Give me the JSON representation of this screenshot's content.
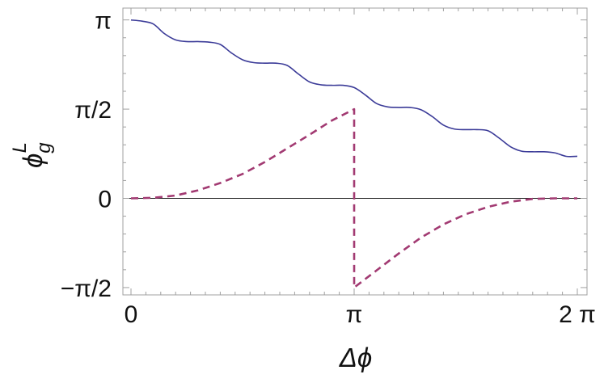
{
  "chart_data": {
    "type": "line",
    "title": "",
    "xlabel": "Δϕ",
    "ylabel": "ϕ",
    "ylabel_sub": "g",
    "ylabel_sup": "L",
    "xlim": [
      0,
      6.283185307
    ],
    "ylim": [
      -1.7,
      3.35
    ],
    "x_ticks": [
      {
        "value": 0,
        "label": "0"
      },
      {
        "value": 3.141592654,
        "label": "π"
      },
      {
        "value": 6.283185307,
        "label": "2 π"
      }
    ],
    "y_ticks": [
      {
        "value": 3.141592654,
        "label": "π"
      },
      {
        "value": 1.570796327,
        "label": "π/2"
      },
      {
        "value": 0,
        "label": "0"
      },
      {
        "value": -1.570796327,
        "label": "−π/2"
      }
    ],
    "zero_line": true,
    "grid": false,
    "series": [
      {
        "style": "solid",
        "color": "#3b3b98",
        "x": [
          0,
          0.157,
          0.314,
          0.471,
          0.628,
          0.785,
          0.942,
          1.1,
          1.257,
          1.414,
          1.571,
          1.728,
          1.885,
          2.042,
          2.199,
          2.356,
          2.513,
          2.67,
          2.827,
          2.985,
          3.142,
          3.299,
          3.456,
          3.613,
          3.77,
          3.927,
          4.084,
          4.241,
          4.398,
          4.555,
          4.712,
          4.869,
          5.027,
          5.184,
          5.341,
          5.498,
          5.655,
          5.812,
          5.969,
          6.126,
          6.283
        ],
        "y": [
          3.14,
          3.12,
          3.07,
          2.9,
          2.79,
          2.76,
          2.76,
          2.75,
          2.71,
          2.56,
          2.44,
          2.39,
          2.38,
          2.38,
          2.34,
          2.19,
          2.05,
          2.0,
          1.99,
          1.99,
          1.95,
          1.82,
          1.67,
          1.61,
          1.6,
          1.6,
          1.56,
          1.44,
          1.29,
          1.22,
          1.21,
          1.21,
          1.19,
          1.06,
          0.91,
          0.83,
          0.82,
          0.82,
          0.8,
          0.74,
          0.74
        ]
      },
      {
        "style": "dashed",
        "color": "#a23a72",
        "x": [
          0,
          0.314,
          0.628,
          0.942,
          1.257,
          1.571,
          1.885,
          2.199,
          2.513,
          2.827,
          3.1415,
          3.1417,
          3.456,
          3.77,
          4.084,
          4.398,
          4.712,
          5.027,
          5.341,
          5.655,
          5.969,
          6.283
        ],
        "y": [
          0,
          0.01,
          0.05,
          0.14,
          0.27,
          0.43,
          0.64,
          0.88,
          1.12,
          1.37,
          1.57,
          -1.57,
          -1.27,
          -0.97,
          -0.69,
          -0.46,
          -0.28,
          -0.15,
          -0.06,
          -0.01,
          0.0,
          0
        ]
      }
    ]
  }
}
